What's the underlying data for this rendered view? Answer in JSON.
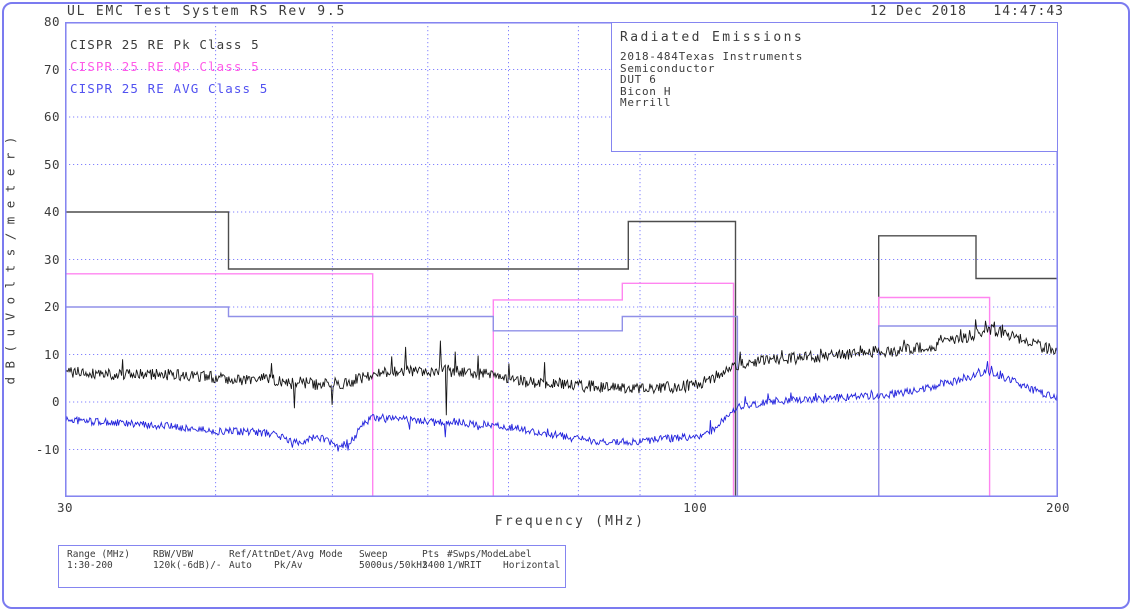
{
  "window": {
    "title": "UL EMC Test System RS Rev 9.5",
    "datetime": "12 Dec 2018   14:47:43"
  },
  "legend": {
    "items": [
      {
        "label": "CISPR 25 RE Pk Class 5",
        "color": "#3c3c3c"
      },
      {
        "label": "CISPR 25 RE QP Class 5",
        "color": "#ff5ce8"
      },
      {
        "label": "CISPR 25 RE AVG Class 5",
        "color": "#5252f0"
      }
    ]
  },
  "info_box": {
    "title": "Radiated Emissions",
    "lines": [
      "2018-484Texas Instruments",
      "Semiconductor",
      "DUT 6",
      "Bicon H",
      "Merrill"
    ]
  },
  "chart_data": {
    "type": "line",
    "title": "Radiated Emissions",
    "xlabel": "Frequency (MHz)",
    "ylabel": "dB(uVolts/meter)",
    "x_scale": "log",
    "xlim": [
      30,
      200
    ],
    "ylim": [
      -20,
      80
    ],
    "x_ticks": [
      30,
      100,
      200
    ],
    "y_ticks": [
      80,
      70,
      60,
      50,
      40,
      30,
      20,
      10,
      0,
      -10
    ],
    "x_gridlines": [
      40,
      50,
      60,
      70,
      80,
      90,
      100
    ],
    "grid_on": true,
    "grid_color": "#8282ff",
    "frame_color": "#8585f0",
    "legend_position": "top-left",
    "limits": [
      {
        "name": "CISPR 25 RE Pk Class 5",
        "color": "#4d4d4d",
        "bands": [
          [
            [
              30,
              41,
              40
            ],
            [
              41,
              88,
              28
            ],
            [
              88,
              108,
              38
            ]
          ],
          [
            [
              142,
              171,
              35
            ],
            [
              171,
              200,
              26
            ]
          ]
        ]
      },
      {
        "name": "CISPR 25 RE QP Class 5",
        "color": "#ff85f0",
        "bands": [
          [
            [
              30,
              54,
              27
            ]
          ],
          [
            [
              68,
              87,
              21.5
            ],
            [
              87,
              107.6,
              25
            ]
          ],
          [
            [
              142,
              175.5,
              22
            ]
          ]
        ]
      },
      {
        "name": "CISPR 25 RE AVG Class 5",
        "color": "#9090e8",
        "bands": [
          [
            [
              30,
              41,
              20
            ],
            [
              41,
              68,
              18
            ],
            [
              68,
              87,
              15
            ],
            [
              87,
              108.4,
              18
            ]
          ],
          [
            [
              142,
              200,
              16
            ]
          ]
        ]
      }
    ],
    "traces": [
      {
        "name": "Pk measurement",
        "color": "#161616",
        "noise_db": 1.25,
        "points": [
          [
            30,
            6.3
          ],
          [
            32,
            6.1
          ],
          [
            34,
            5.7
          ],
          [
            36,
            5.9
          ],
          [
            38,
            5.4
          ],
          [
            40,
            5.3
          ],
          [
            42,
            4.7
          ],
          [
            44,
            4.9
          ],
          [
            46,
            3.9
          ],
          [
            47,
            4.3
          ],
          [
            48,
            3.8
          ],
          [
            49,
            3.6
          ],
          [
            50,
            4.1
          ],
          [
            51,
            4.0
          ],
          [
            52,
            4.5
          ],
          [
            53,
            5.1
          ],
          [
            54,
            5.5
          ],
          [
            55,
            6.2
          ],
          [
            56,
            6.0
          ],
          [
            57,
            6.8
          ],
          [
            58,
            6.4
          ],
          [
            59,
            6.2
          ],
          [
            60,
            6.6
          ],
          [
            61,
            6.4
          ],
          [
            62,
            6.8
          ],
          [
            63,
            6.3
          ],
          [
            64,
            6.5
          ],
          [
            65,
            6.0
          ],
          [
            66,
            5.7
          ],
          [
            67,
            6.1
          ],
          [
            68,
            5.4
          ],
          [
            69,
            5.1
          ],
          [
            70,
            4.7
          ],
          [
            71,
            4.9
          ],
          [
            72,
            4.3
          ],
          [
            74,
            4.1
          ],
          [
            76,
            4.0
          ],
          [
            78,
            3.6
          ],
          [
            80,
            3.4
          ],
          [
            82,
            3.3
          ],
          [
            84,
            3.1
          ],
          [
            86,
            3.0
          ],
          [
            88,
            3.2
          ],
          [
            90,
            2.9
          ],
          [
            92,
            3.0
          ],
          [
            94,
            3.0
          ],
          [
            96,
            3.1
          ],
          [
            98,
            3.3
          ],
          [
            100,
            3.6
          ],
          [
            102,
            4.3
          ],
          [
            104,
            5.3
          ],
          [
            106,
            6.5
          ],
          [
            108,
            7.5
          ],
          [
            110,
            8.1
          ],
          [
            112,
            8.4
          ],
          [
            115,
            8.7
          ],
          [
            118,
            9.0
          ],
          [
            121,
            9.2
          ],
          [
            124,
            9.4
          ],
          [
            127,
            9.6
          ],
          [
            130,
            9.8
          ],
          [
            134,
            10.1
          ],
          [
            138,
            10.4
          ],
          [
            142,
            10.6
          ],
          [
            146,
            10.8
          ],
          [
            150,
            11.1
          ],
          [
            154,
            11.5
          ],
          [
            158,
            12.0
          ],
          [
            162,
            12.6
          ],
          [
            165,
            13.1
          ],
          [
            168,
            13.7
          ],
          [
            170,
            14.1
          ],
          [
            172,
            14.6
          ],
          [
            174,
            15.0
          ],
          [
            176,
            15.1
          ],
          [
            178,
            14.8
          ],
          [
            180,
            14.4
          ],
          [
            183,
            13.7
          ],
          [
            186,
            13.1
          ],
          [
            189,
            12.5
          ],
          [
            192,
            12.0
          ],
          [
            195,
            11.5
          ],
          [
            198,
            11.1
          ],
          [
            200,
            10.8
          ]
        ],
        "spikes": [
          [
            33.5,
            9
          ],
          [
            44.5,
            8.2
          ],
          [
            46.5,
            -1.3
          ],
          [
            50,
            -0.6
          ],
          [
            56,
            9.6
          ],
          [
            57.5,
            11.6
          ],
          [
            61.5,
            12.9
          ],
          [
            62.2,
            -2.8
          ],
          [
            63.2,
            10.6
          ],
          [
            66,
            9.8
          ],
          [
            70,
            8.1
          ],
          [
            75,
            8.4
          ],
          [
            109,
            10.6
          ],
          [
            118,
            10.9
          ],
          [
            127,
            11.2
          ],
          [
            137,
            11.9
          ],
          [
            149,
            13.1
          ],
          [
            160,
            14.1
          ],
          [
            166,
            15.3
          ],
          [
            171,
            17.4
          ],
          [
            174,
            17.1
          ],
          [
            177,
            16.9
          ],
          [
            180,
            16.3
          ],
          [
            186,
            14.3
          ],
          [
            193,
            12.6
          ]
        ]
      },
      {
        "name": "AVG measurement",
        "color": "#2424dd",
        "noise_db": 0.8,
        "points": [
          [
            30,
            -3.7
          ],
          [
            33,
            -4.4
          ],
          [
            36,
            -5.0
          ],
          [
            38,
            -5.5
          ],
          [
            40,
            -6.2
          ],
          [
            43,
            -6.3
          ],
          [
            45,
            -6.8
          ],
          [
            46,
            -8.2
          ],
          [
            47,
            -8.4
          ],
          [
            48,
            -7.6
          ],
          [
            49,
            -7.5
          ],
          [
            50,
            -8.9
          ],
          [
            51,
            -9.1
          ],
          [
            52,
            -7.9
          ],
          [
            53,
            -4.6
          ],
          [
            54,
            -3.3
          ],
          [
            55,
            -3.5
          ],
          [
            57,
            -3.6
          ],
          [
            59,
            -3.9
          ],
          [
            61,
            -4.3
          ],
          [
            63,
            -4.1
          ],
          [
            65,
            -4.6
          ],
          [
            67,
            -4.7
          ],
          [
            69,
            -5.0
          ],
          [
            71,
            -5.5
          ],
          [
            74,
            -6.3
          ],
          [
            77,
            -7.1
          ],
          [
            80,
            -7.8
          ],
          [
            83,
            -8.3
          ],
          [
            86,
            -8.5
          ],
          [
            89,
            -8.3
          ],
          [
            92,
            -8.0
          ],
          [
            95,
            -7.7
          ],
          [
            98,
            -7.4
          ],
          [
            100,
            -7.3
          ],
          [
            102,
            -6.9
          ],
          [
            104,
            -5.4
          ],
          [
            106,
            -3.2
          ],
          [
            108,
            -1.3
          ],
          [
            110,
            -0.6
          ],
          [
            112,
            -0.4
          ],
          [
            115,
            0.1
          ],
          [
            118,
            0.3
          ],
          [
            121,
            0.4
          ],
          [
            124,
            0.6
          ],
          [
            127,
            0.6
          ],
          [
            130,
            0.8
          ],
          [
            134,
            1.0
          ],
          [
            138,
            1.2
          ],
          [
            142,
            1.4
          ],
          [
            146,
            1.7
          ],
          [
            150,
            2.1
          ],
          [
            154,
            2.7
          ],
          [
            158,
            3.3
          ],
          [
            162,
            4.0
          ],
          [
            165,
            4.5
          ],
          [
            168,
            5.0
          ],
          [
            171,
            5.6
          ],
          [
            173,
            6.1
          ],
          [
            175,
            6.4
          ],
          [
            177,
            6.0
          ],
          [
            179,
            5.6
          ],
          [
            181,
            5.1
          ],
          [
            184,
            4.3
          ],
          [
            187,
            3.5
          ],
          [
            190,
            2.7
          ],
          [
            193,
            2.1
          ],
          [
            196,
            1.5
          ],
          [
            200,
            1.0
          ]
        ],
        "spikes": [
          [
            36.5,
            -4.3
          ],
          [
            46.3,
            -9.6
          ],
          [
            50.5,
            -10.4
          ],
          [
            51.5,
            -10.2
          ],
          [
            55,
            -2.6
          ],
          [
            58,
            -5.8
          ],
          [
            62,
            -7.4
          ],
          [
            66,
            -5.9
          ],
          [
            75.5,
            -5.6
          ],
          [
            103,
            -3.8
          ],
          [
            110,
            1.2
          ],
          [
            115,
            1.8
          ],
          [
            120,
            2.0
          ],
          [
            126,
            1.9
          ],
          [
            140,
            2.4
          ],
          [
            152,
            3.0
          ],
          [
            160,
            4.6
          ],
          [
            167,
            5.8
          ],
          [
            172,
            7.0
          ],
          [
            174.8,
            8.6
          ],
          [
            176,
            7.6
          ],
          [
            179,
            6.6
          ],
          [
            184,
            5.0
          ],
          [
            191,
            3.0
          ]
        ]
      }
    ]
  },
  "settings": {
    "columns": [
      {
        "header": "Range (MHz)",
        "value": "1:30-200"
      },
      {
        "header": "RBW/VBW",
        "value": "120k(-6dB)/-"
      },
      {
        "header": "Ref/Attn",
        "value": "Auto"
      },
      {
        "header": "Det/Avg Mode",
        "value": "Pk/Av"
      },
      {
        "header": "Sweep",
        "value": "5000us/50kHz"
      },
      {
        "header": "Pts",
        "value": "3400"
      },
      {
        "header": "#Swps/Mode",
        "value": "1/WRIT"
      },
      {
        "header": "Label",
        "value": "Horizontal"
      }
    ]
  }
}
